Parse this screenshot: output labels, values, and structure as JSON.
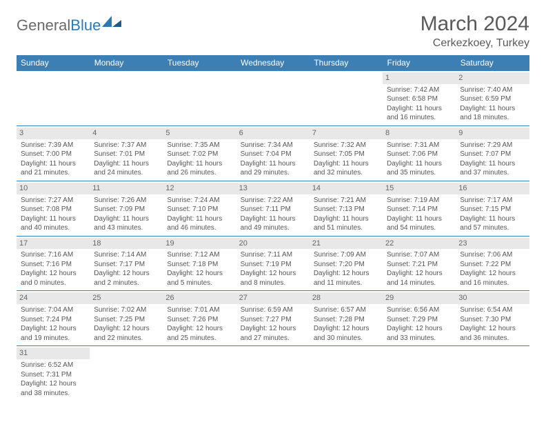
{
  "logo": {
    "general": "General",
    "blue": "Blue"
  },
  "title": "March 2024",
  "location": "Cerkezkoey, Turkey",
  "colors": {
    "header_bg": "#3b7fb5",
    "daynum_bg": "#e8e8e8",
    "border": "#3b7fb5",
    "text": "#555555"
  },
  "dow": [
    "Sunday",
    "Monday",
    "Tuesday",
    "Wednesday",
    "Thursday",
    "Friday",
    "Saturday"
  ],
  "weeks": [
    [
      null,
      null,
      null,
      null,
      null,
      {
        "n": "1",
        "sr": "Sunrise: 7:42 AM",
        "ss": "Sunset: 6:58 PM",
        "d1": "Daylight: 11 hours",
        "d2": "and 16 minutes."
      },
      {
        "n": "2",
        "sr": "Sunrise: 7:40 AM",
        "ss": "Sunset: 6:59 PM",
        "d1": "Daylight: 11 hours",
        "d2": "and 18 minutes."
      }
    ],
    [
      {
        "n": "3",
        "sr": "Sunrise: 7:39 AM",
        "ss": "Sunset: 7:00 PM",
        "d1": "Daylight: 11 hours",
        "d2": "and 21 minutes."
      },
      {
        "n": "4",
        "sr": "Sunrise: 7:37 AM",
        "ss": "Sunset: 7:01 PM",
        "d1": "Daylight: 11 hours",
        "d2": "and 24 minutes."
      },
      {
        "n": "5",
        "sr": "Sunrise: 7:35 AM",
        "ss": "Sunset: 7:02 PM",
        "d1": "Daylight: 11 hours",
        "d2": "and 26 minutes."
      },
      {
        "n": "6",
        "sr": "Sunrise: 7:34 AM",
        "ss": "Sunset: 7:04 PM",
        "d1": "Daylight: 11 hours",
        "d2": "and 29 minutes."
      },
      {
        "n": "7",
        "sr": "Sunrise: 7:32 AM",
        "ss": "Sunset: 7:05 PM",
        "d1": "Daylight: 11 hours",
        "d2": "and 32 minutes."
      },
      {
        "n": "8",
        "sr": "Sunrise: 7:31 AM",
        "ss": "Sunset: 7:06 PM",
        "d1": "Daylight: 11 hours",
        "d2": "and 35 minutes."
      },
      {
        "n": "9",
        "sr": "Sunrise: 7:29 AM",
        "ss": "Sunset: 7:07 PM",
        "d1": "Daylight: 11 hours",
        "d2": "and 37 minutes."
      }
    ],
    [
      {
        "n": "10",
        "sr": "Sunrise: 7:27 AM",
        "ss": "Sunset: 7:08 PM",
        "d1": "Daylight: 11 hours",
        "d2": "and 40 minutes."
      },
      {
        "n": "11",
        "sr": "Sunrise: 7:26 AM",
        "ss": "Sunset: 7:09 PM",
        "d1": "Daylight: 11 hours",
        "d2": "and 43 minutes."
      },
      {
        "n": "12",
        "sr": "Sunrise: 7:24 AM",
        "ss": "Sunset: 7:10 PM",
        "d1": "Daylight: 11 hours",
        "d2": "and 46 minutes."
      },
      {
        "n": "13",
        "sr": "Sunrise: 7:22 AM",
        "ss": "Sunset: 7:11 PM",
        "d1": "Daylight: 11 hours",
        "d2": "and 49 minutes."
      },
      {
        "n": "14",
        "sr": "Sunrise: 7:21 AM",
        "ss": "Sunset: 7:13 PM",
        "d1": "Daylight: 11 hours",
        "d2": "and 51 minutes."
      },
      {
        "n": "15",
        "sr": "Sunrise: 7:19 AM",
        "ss": "Sunset: 7:14 PM",
        "d1": "Daylight: 11 hours",
        "d2": "and 54 minutes."
      },
      {
        "n": "16",
        "sr": "Sunrise: 7:17 AM",
        "ss": "Sunset: 7:15 PM",
        "d1": "Daylight: 11 hours",
        "d2": "and 57 minutes."
      }
    ],
    [
      {
        "n": "17",
        "sr": "Sunrise: 7:16 AM",
        "ss": "Sunset: 7:16 PM",
        "d1": "Daylight: 12 hours",
        "d2": "and 0 minutes."
      },
      {
        "n": "18",
        "sr": "Sunrise: 7:14 AM",
        "ss": "Sunset: 7:17 PM",
        "d1": "Daylight: 12 hours",
        "d2": "and 2 minutes."
      },
      {
        "n": "19",
        "sr": "Sunrise: 7:12 AM",
        "ss": "Sunset: 7:18 PM",
        "d1": "Daylight: 12 hours",
        "d2": "and 5 minutes."
      },
      {
        "n": "20",
        "sr": "Sunrise: 7:11 AM",
        "ss": "Sunset: 7:19 PM",
        "d1": "Daylight: 12 hours",
        "d2": "and 8 minutes."
      },
      {
        "n": "21",
        "sr": "Sunrise: 7:09 AM",
        "ss": "Sunset: 7:20 PM",
        "d1": "Daylight: 12 hours",
        "d2": "and 11 minutes."
      },
      {
        "n": "22",
        "sr": "Sunrise: 7:07 AM",
        "ss": "Sunset: 7:21 PM",
        "d1": "Daylight: 12 hours",
        "d2": "and 14 minutes."
      },
      {
        "n": "23",
        "sr": "Sunrise: 7:06 AM",
        "ss": "Sunset: 7:22 PM",
        "d1": "Daylight: 12 hours",
        "d2": "and 16 minutes."
      }
    ],
    [
      {
        "n": "24",
        "sr": "Sunrise: 7:04 AM",
        "ss": "Sunset: 7:24 PM",
        "d1": "Daylight: 12 hours",
        "d2": "and 19 minutes."
      },
      {
        "n": "25",
        "sr": "Sunrise: 7:02 AM",
        "ss": "Sunset: 7:25 PM",
        "d1": "Daylight: 12 hours",
        "d2": "and 22 minutes."
      },
      {
        "n": "26",
        "sr": "Sunrise: 7:01 AM",
        "ss": "Sunset: 7:26 PM",
        "d1": "Daylight: 12 hours",
        "d2": "and 25 minutes."
      },
      {
        "n": "27",
        "sr": "Sunrise: 6:59 AM",
        "ss": "Sunset: 7:27 PM",
        "d1": "Daylight: 12 hours",
        "d2": "and 27 minutes."
      },
      {
        "n": "28",
        "sr": "Sunrise: 6:57 AM",
        "ss": "Sunset: 7:28 PM",
        "d1": "Daylight: 12 hours",
        "d2": "and 30 minutes."
      },
      {
        "n": "29",
        "sr": "Sunrise: 6:56 AM",
        "ss": "Sunset: 7:29 PM",
        "d1": "Daylight: 12 hours",
        "d2": "and 33 minutes."
      },
      {
        "n": "30",
        "sr": "Sunrise: 6:54 AM",
        "ss": "Sunset: 7:30 PM",
        "d1": "Daylight: 12 hours",
        "d2": "and 36 minutes."
      }
    ],
    [
      {
        "n": "31",
        "sr": "Sunrise: 6:52 AM",
        "ss": "Sunset: 7:31 PM",
        "d1": "Daylight: 12 hours",
        "d2": "and 38 minutes."
      },
      null,
      null,
      null,
      null,
      null,
      null
    ]
  ]
}
